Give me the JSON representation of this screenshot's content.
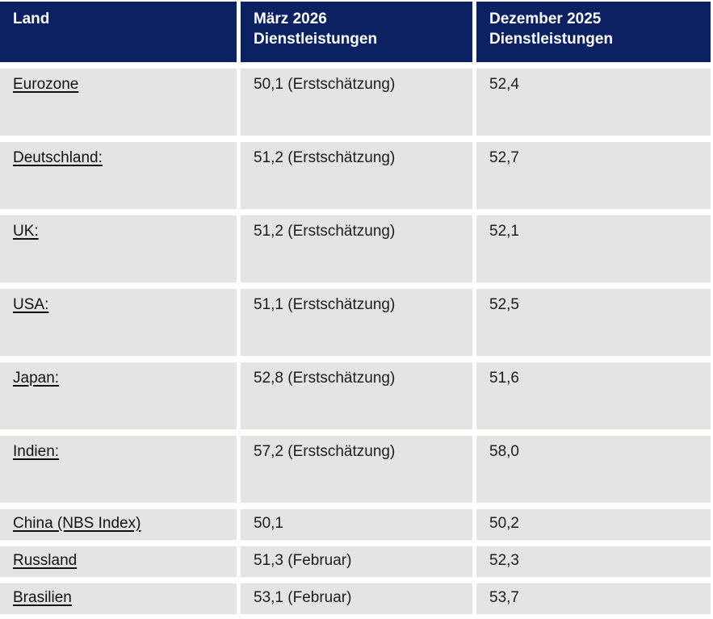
{
  "table": {
    "headers": [
      "Land",
      "März 2026\nDienstleistungen",
      "Dezember 2025\nDienstleistungen"
    ],
    "rows": [
      {
        "land": "Eurozone",
        "maerz": "50,1 (Erstschätzung)",
        "dezember": "52,4"
      },
      {
        "land": "Deutschland:",
        "maerz": "51,2 (Erstschätzung)",
        "dezember": "52,7"
      },
      {
        "land": "UK:",
        "maerz": "51,2 (Erstschätzung)",
        "dezember": "52,1"
      },
      {
        "land": "USA:",
        "maerz": "51,1 (Erstschätzung)",
        "dezember": "52,5"
      },
      {
        "land": "Japan:",
        "maerz": "52,8 (Erstschätzung)",
        "dezember": "51,6"
      },
      {
        "land": "Indien:",
        "maerz": "57,2 (Erstschätzung)",
        "dezember": "58,0"
      },
      {
        "land": "China (NBS Index)",
        "maerz": "50,1",
        "dezember": "50,2"
      },
      {
        "land": "Russland",
        "maerz": "51,3 (Februar)",
        "dezember": "52,3"
      },
      {
        "land": "Brasilien",
        "maerz": "53,1 (Februar)",
        "dezember": "53,7"
      }
    ]
  },
  "colors": {
    "header_bg": "#0c2161",
    "header_text": "#ffffff",
    "row_bg": "#e5e4e3",
    "body_text": "#1c1c1c"
  },
  "chart_data": {
    "type": "table",
    "columns": [
      "Land",
      "März 2026 Dienstleistungen",
      "Dezember 2025 Dienstleistungen"
    ],
    "rows": [
      [
        "Eurozone",
        "50,1 (Erstschätzung)",
        "52,4"
      ],
      [
        "Deutschland:",
        "51,2 (Erstschätzung)",
        "52,7"
      ],
      [
        "UK:",
        "51,2 (Erstschätzung)",
        "52,1"
      ],
      [
        "USA:",
        "51,1 (Erstschätzung)",
        "52,5"
      ],
      [
        "Japan:",
        "52,8 (Erstschätzung)",
        "51,6"
      ],
      [
        "Indien:",
        "57,2 (Erstschätzung)",
        "58,0"
      ],
      [
        "China (NBS Index)",
        "50,1",
        "50,2"
      ],
      [
        "Russland",
        "51,3 (Februar)",
        "52,3"
      ],
      [
        "Brasilien",
        "53,1 (Februar)",
        "53,7"
      ]
    ]
  }
}
